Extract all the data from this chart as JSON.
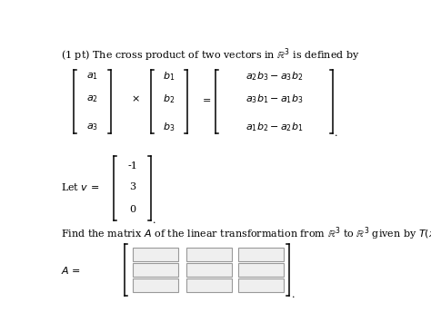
{
  "bg_color": "#ffffff",
  "title_text": "(1 pt) The cross product of two vectors in $\\mathbb{R}^3$ is defined by",
  "cross_product_lhs_a": [
    "$a_1$",
    "$a_2$",
    "$a_3$"
  ],
  "cross_product_lhs_b": [
    "$b_1$",
    "$b_2$",
    "$b_3$"
  ],
  "cross_product_rhs": [
    "$a_2 b_3 - a_3 b_2$",
    "$a_3 b_1 - a_1 b_3$",
    "$a_1 b_2 - a_2 b_1$"
  ],
  "let_v_label": "Let $v$ =",
  "v_vector": [
    "-1",
    "3",
    "0"
  ],
  "find_text": "Find the matrix $A$ of the linear transformation from $\\mathbb{R}^3$ to $\\mathbb{R}^3$ given by $T(x) = v \\times x$.",
  "A_label": "$A$ =",
  "font_size": 8.0,
  "bracket_arm": 0.008
}
